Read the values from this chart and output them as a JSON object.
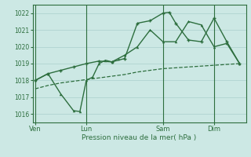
{
  "bg_color": "#cce8e4",
  "grid_color": "#aacfcc",
  "line_color": "#2d6e3e",
  "title": "Pression niveau de la mer( hPa )",
  "ylim": [
    1015.5,
    1022.5
  ],
  "yticks": [
    1016,
    1017,
    1018,
    1019,
    1020,
    1021,
    1022
  ],
  "xlabel_days": [
    "Ven",
    "Lun",
    "Sam",
    "Dim"
  ],
  "vline_positions": [
    0,
    4,
    10,
    14
  ],
  "xlim": [
    -0.2,
    16.5
  ],
  "xtick_positions": [
    0,
    4,
    10,
    14
  ],
  "s1_x": [
    0,
    1,
    2,
    3,
    4,
    5,
    6,
    7,
    8,
    9,
    10,
    11,
    12,
    13,
    14,
    15,
    16
  ],
  "s1_y": [
    1017.5,
    1017.7,
    1017.85,
    1017.95,
    1018.05,
    1018.15,
    1018.25,
    1018.35,
    1018.5,
    1018.6,
    1018.7,
    1018.75,
    1018.8,
    1018.85,
    1018.9,
    1018.95,
    1019.0
  ],
  "s2_x": [
    0,
    1,
    2,
    3,
    3.5,
    4,
    4.5,
    5,
    5.5,
    6,
    6.5,
    7,
    8,
    9,
    10,
    11,
    12,
    13,
    14,
    15,
    16
  ],
  "s2_y": [
    1018.0,
    1018.4,
    1017.2,
    1016.2,
    1016.15,
    1018.0,
    1018.2,
    1019.0,
    1019.2,
    1019.1,
    1019.3,
    1019.5,
    1020.0,
    1021.0,
    1020.3,
    1020.3,
    1021.5,
    1021.3,
    1020.0,
    1020.2,
    1019.0
  ],
  "s3_x": [
    0,
    1,
    2,
    3,
    4,
    5,
    6,
    7,
    8,
    9,
    10,
    10.5,
    11,
    12,
    13,
    14,
    15,
    16
  ],
  "s3_y": [
    1018.0,
    1018.4,
    1018.6,
    1018.8,
    1019.0,
    1019.15,
    1019.1,
    1019.3,
    1021.4,
    1021.55,
    1022.0,
    1022.05,
    1021.4,
    1020.4,
    1020.3,
    1021.7,
    1020.3,
    1019.0
  ]
}
